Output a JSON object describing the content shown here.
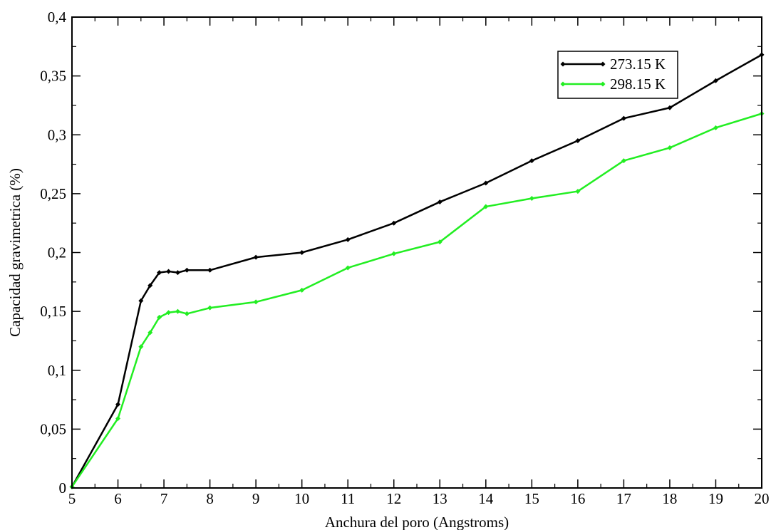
{
  "chart_data": {
    "type": "line",
    "title": "",
    "xlabel": "Anchura del poro (Angstroms)",
    "ylabel": "Capacidad gravimetrica (%)",
    "xlim": [
      5,
      20
    ],
    "ylim": [
      0,
      0.4
    ],
    "x_ticks": [
      "5",
      "6",
      "7",
      "8",
      "9",
      "10",
      "11",
      "12",
      "13",
      "14",
      "15",
      "16",
      "17",
      "18",
      "19",
      "20"
    ],
    "y_ticks": [
      "0",
      "0,05",
      "0,1",
      "0,15",
      "0,2",
      "0,25",
      "0,3",
      "0,35",
      "0,4"
    ],
    "grid": false,
    "legend_position": "top-right",
    "series": [
      {
        "name": "273.15 K",
        "color": "#000000",
        "x": [
          5,
          6,
          6.5,
          6.7,
          6.9,
          7.1,
          7.3,
          7.5,
          8,
          9,
          10,
          11,
          12,
          13,
          14,
          15,
          16,
          17,
          18,
          19,
          20
        ],
        "y": [
          0.001,
          0.071,
          0.159,
          0.172,
          0.183,
          0.184,
          0.183,
          0.185,
          0.185,
          0.196,
          0.2,
          0.211,
          0.225,
          0.243,
          0.259,
          0.278,
          0.295,
          0.314,
          0.323,
          0.346,
          0.368
        ]
      },
      {
        "name": "298.15 K",
        "color": "#22ee22",
        "x": [
          5,
          6,
          6.5,
          6.7,
          6.9,
          7.1,
          7.3,
          7.5,
          8,
          9,
          10,
          11,
          12,
          13,
          14,
          15,
          16,
          17,
          18,
          19,
          20
        ],
        "y": [
          0.001,
          0.059,
          0.12,
          0.132,
          0.145,
          0.149,
          0.15,
          0.148,
          0.153,
          0.158,
          0.168,
          0.187,
          0.199,
          0.209,
          0.239,
          0.246,
          0.252,
          0.278,
          0.289,
          0.306,
          0.318
        ]
      }
    ]
  }
}
